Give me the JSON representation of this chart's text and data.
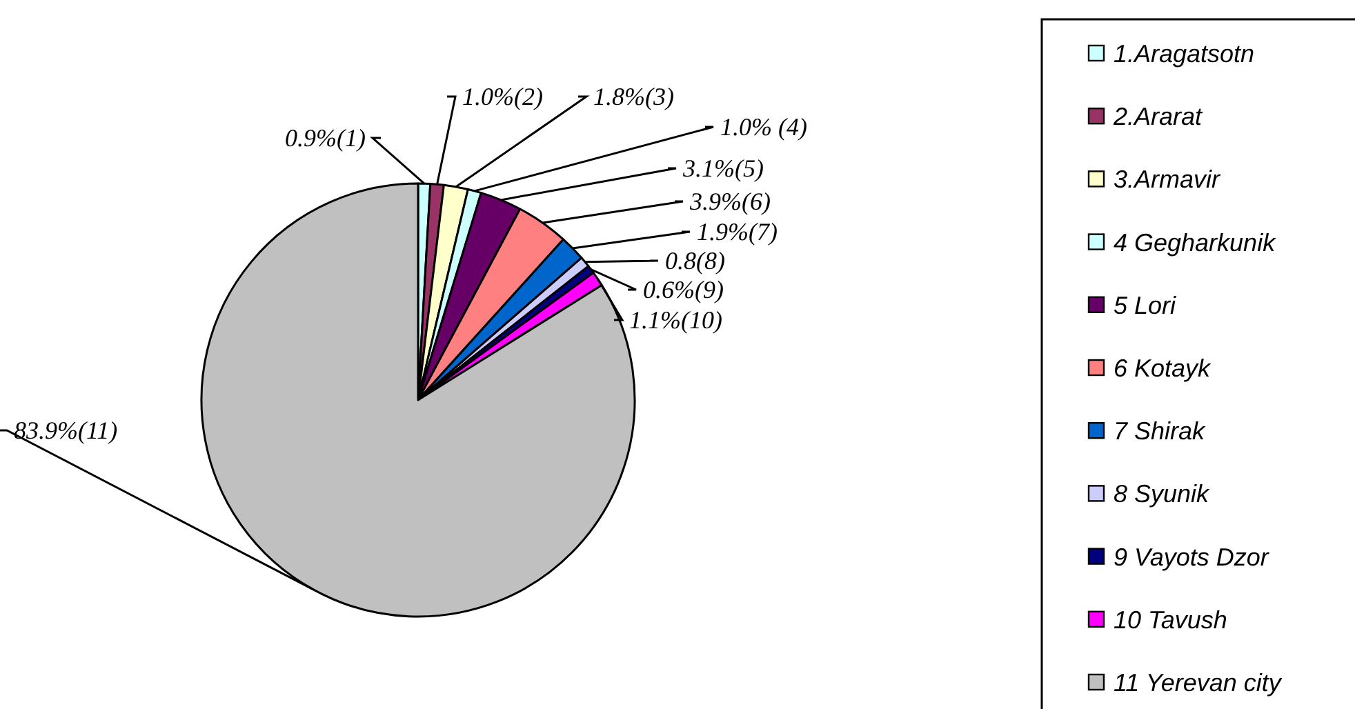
{
  "chart_data": {
    "type": "pie",
    "categories": [
      "1.Aragatsotn",
      "2.Ararat",
      "3.Armavir",
      "4 Gegharkunik",
      "5 Lori",
      "6 Kotayk",
      "7 Shirak",
      "8 Syunik",
      "9 Vayots Dzor",
      "10 Tavush",
      "11 Yerevan city"
    ],
    "values": [
      0.9,
      1.0,
      1.8,
      1.0,
      3.1,
      3.9,
      1.9,
      0.8,
      0.6,
      1.1,
      83.9
    ],
    "colors": [
      "#ccffff",
      "#993366",
      "#ffffcc",
      "#ccffff",
      "#660066",
      "#ff8080",
      "#0066cc",
      "#ccccff",
      "#000080",
      "#ff00ff",
      "#c0c0c0"
    ],
    "value_labels": [
      "0.9%(1)",
      "1.0%(2)",
      "1.8%(3)",
      "1.0% (4)",
      "3.1%(5)",
      "3.9%(6)",
      "1.9%(7)",
      "0.8(8)",
      "0.6%(9)",
      "1.1%(10)",
      "83.9%(11)"
    ],
    "legend": "right"
  }
}
